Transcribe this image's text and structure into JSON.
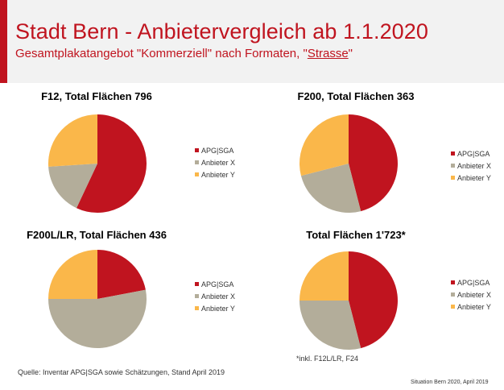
{
  "header": {
    "title": "Stadt Bern - Anbietervergleich  ab 1.1.2020",
    "subtitle_prefix": "Gesamtplakatangebot \"Kommerziell\" nach Formaten, \"",
    "subtitle_underlined": "Strasse",
    "subtitle_suffix": "\""
  },
  "colors": {
    "APG|SGA": "#c0141f",
    "Anbieter X": "#b3ad9a",
    "Anbieter Y": "#fab74a",
    "accent": "#c0141f"
  },
  "chart_data": [
    {
      "type": "pie",
      "title": "F12, Total Flächen 796",
      "labels": [
        "APG|SGA",
        "Anbieter X",
        "Anbieter Y"
      ],
      "values": [
        57,
        17,
        26
      ],
      "legend": "right"
    },
    {
      "type": "pie",
      "title": "F200, Total Flächen 363",
      "labels": [
        "APG|SGA",
        "Anbieter X",
        "Anbieter Y"
      ],
      "values": [
        46,
        25,
        29
      ],
      "legend": "right"
    },
    {
      "type": "pie",
      "title": "F200L/LR, Total Flächen 436",
      "labels": [
        "APG|SGA",
        "Anbieter X",
        "Anbieter Y"
      ],
      "values": [
        22,
        53,
        25
      ],
      "legend": "right"
    },
    {
      "type": "pie",
      "title": "Total Flächen 1'723*",
      "labels": [
        "APG|SGA",
        "Anbieter X",
        "Anbieter Y"
      ],
      "values": [
        46,
        29,
        25
      ],
      "legend": "right"
    }
  ],
  "footnote": "*inkl. F12L/LR,  F24",
  "source": "Quelle:  Inventar  APG|SGA sowie Schätzungen, Stand April 2019",
  "stamp": "Situation Bern 2020, April 2019"
}
